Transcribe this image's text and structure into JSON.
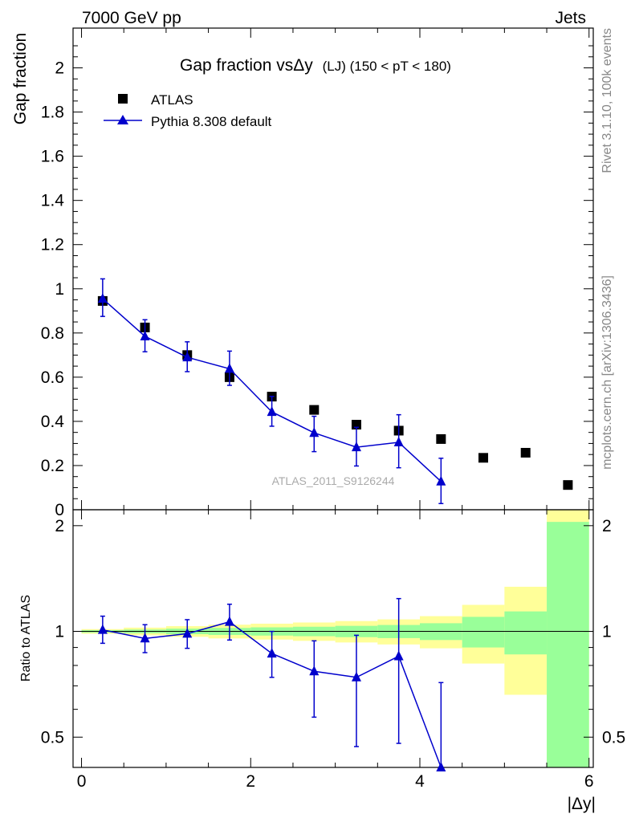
{
  "header": {
    "energy": "7000 GeV pp",
    "process": "Jets",
    "rivet": "Rivet 3.1.10,  100k events",
    "mcplots": "mcplots.cern.ch [arXiv:1306.3436]"
  },
  "colors": {
    "atlas": "#000000",
    "pythia": "#0000cc",
    "band_yellow": "#ffff99",
    "band_green": "#99ff99"
  },
  "chart_data": [
    {
      "type": "scatter",
      "panel": "main",
      "title": "Gap fraction vsΔy",
      "title_extra": "(LJ) (150 < pT < 180)",
      "ylabel": "Gap fraction",
      "watermark": "ATLAS_2011_S9126244",
      "xlim": [
        -0.1,
        6.05
      ],
      "ylim": [
        0,
        2.18
      ],
      "yticks": [
        0,
        0.2,
        0.4,
        0.6,
        0.8,
        1,
        1.2,
        1.4,
        1.6,
        1.8,
        2
      ],
      "ytick_labels": [
        "0",
        "0.2",
        "0.4",
        "0.6",
        "0.8",
        "1",
        "1.2",
        "1.4",
        "1.6",
        "1.8",
        "2"
      ],
      "legend": {
        "position": "top-left",
        "entries": [
          "ATLAS",
          "Pythia 8.308 default"
        ]
      },
      "series": [
        {
          "name": "ATLAS",
          "marker": "square",
          "x": [
            0.25,
            0.75,
            1.25,
            1.75,
            2.25,
            2.75,
            3.25,
            3.75,
            4.25,
            4.75,
            5.25,
            5.75
          ],
          "xerr": [
            0.25,
            0.25,
            0.25,
            0.25,
            0.25,
            0.25,
            0.25,
            0.25,
            0.25,
            0.25,
            0.25,
            0.25
          ],
          "values": [
            0.945,
            0.825,
            0.7,
            0.6,
            0.512,
            0.452,
            0.385,
            0.358,
            0.32,
            0.235,
            0.258,
            0.112
          ]
        },
        {
          "name": "Pythia 8.308 default",
          "marker": "triangle",
          "x": [
            0.25,
            0.75,
            1.25,
            1.75,
            2.25,
            2.75,
            3.25,
            3.75,
            4.25
          ],
          "values": [
            0.955,
            0.785,
            0.69,
            0.638,
            0.443,
            0.348,
            0.283,
            0.305,
            0.128
          ],
          "err_low": [
            0.08,
            0.07,
            0.065,
            0.075,
            0.065,
            0.085,
            0.085,
            0.115,
            0.1
          ],
          "err_high": [
            0.09,
            0.075,
            0.07,
            0.08,
            0.07,
            0.075,
            0.09,
            0.125,
            0.105
          ]
        }
      ]
    },
    {
      "type": "line",
      "panel": "ratio",
      "ylabel": "Ratio to ATLAS",
      "xlabel": "|Δy|",
      "xlim": [
        -0.1,
        6.05
      ],
      "ylim": [
        0.41,
        2.22
      ],
      "y_scale": "log",
      "xticks": [
        0,
        2,
        4,
        6
      ],
      "xtick_labels": [
        "0",
        "2",
        "4",
        "6"
      ],
      "yticks": [
        0.5,
        1,
        2
      ],
      "ytick_labels": [
        "0.5",
        "1",
        "2"
      ],
      "bands": {
        "bin_edges": [
          0,
          0.5,
          1,
          1.5,
          2,
          2.5,
          3,
          3.5,
          4,
          4.5,
          5,
          5.5,
          6
        ],
        "yellow_low": [
          0.985,
          0.975,
          0.965,
          0.955,
          0.948,
          0.94,
          0.93,
          0.918,
          0.895,
          0.81,
          0.66,
          0.3
        ],
        "yellow_high": [
          1.015,
          1.025,
          1.035,
          1.045,
          1.052,
          1.06,
          1.07,
          1.082,
          1.105,
          1.19,
          1.34,
          2.4
        ],
        "green_low": [
          0.992,
          0.988,
          0.982,
          0.977,
          0.973,
          0.969,
          0.963,
          0.957,
          0.945,
          0.9,
          0.86,
          0.3
        ],
        "green_high": [
          1.008,
          1.012,
          1.018,
          1.023,
          1.027,
          1.031,
          1.037,
          1.043,
          1.055,
          1.1,
          1.14,
          2.05
        ]
      },
      "series": [
        {
          "name": "Pythia 8.308 default",
          "marker": "triangle",
          "x": [
            0.25,
            0.75,
            1.25,
            1.75,
            2.25,
            2.75,
            3.25,
            3.75,
            4.25
          ],
          "values": [
            1.01,
            0.955,
            0.985,
            1.065,
            0.865,
            0.77,
            0.74,
            0.85,
            0.4
          ],
          "err_low": [
            0.085,
            0.085,
            0.09,
            0.12,
            0.125,
            0.2,
            0.27,
            0.37,
            0.05
          ],
          "err_high": [
            0.095,
            0.09,
            0.095,
            0.13,
            0.135,
            0.17,
            0.235,
            0.39,
            0.315
          ]
        }
      ]
    }
  ]
}
